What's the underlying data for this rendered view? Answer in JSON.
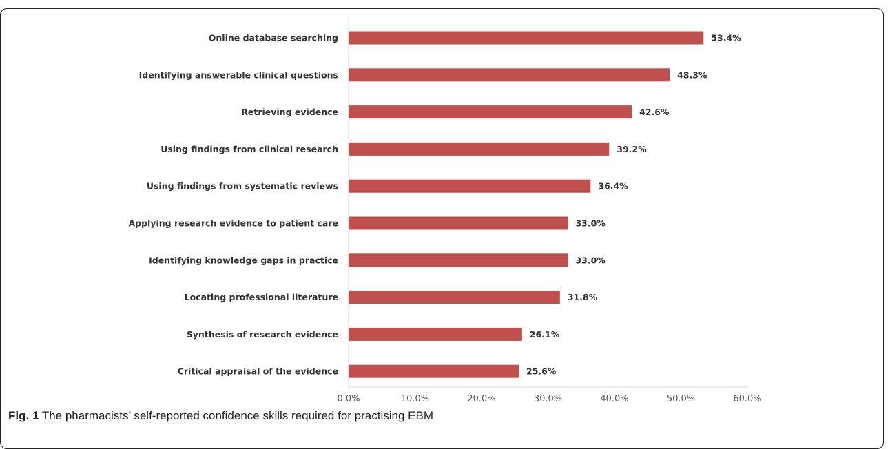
{
  "caption": {
    "fig_label": "Fig. 1",
    "text": "The pharmacists’ self-reported confidence skills required for practising EBM"
  },
  "chart_data": {
    "type": "bar",
    "orientation": "horizontal",
    "categories": [
      "Online database searching",
      "Identifying answerable clinical questions",
      "Retrieving evidence",
      "Using findings from clinical research",
      "Using findings from systematic reviews",
      "Applying research evidence to patient care",
      "Identifying knowledge gaps in practice",
      "Locating professional literature",
      "Synthesis of research evidence",
      "Critical appraisal of the evidence"
    ],
    "values": [
      53.4,
      48.3,
      42.6,
      39.2,
      36.4,
      33.0,
      33.0,
      31.8,
      26.1,
      25.6
    ],
    "value_labels": [
      "53.4%",
      "48.3%",
      "42.6%",
      "39.2%",
      "36.4%",
      "33.0%",
      "33.0%",
      "31.8%",
      "26.1%",
      "25.6%"
    ],
    "xticks": [
      0,
      10,
      20,
      30,
      40,
      50,
      60
    ],
    "xtick_labels": [
      "0.0%",
      "10.0%",
      "20.0%",
      "30.0%",
      "40.0%",
      "50.0%",
      "60.0%"
    ],
    "xlim": [
      0,
      60
    ],
    "grid": false,
    "bar_color": "#c0504d",
    "title": "",
    "xlabel": "",
    "ylabel": ""
  }
}
